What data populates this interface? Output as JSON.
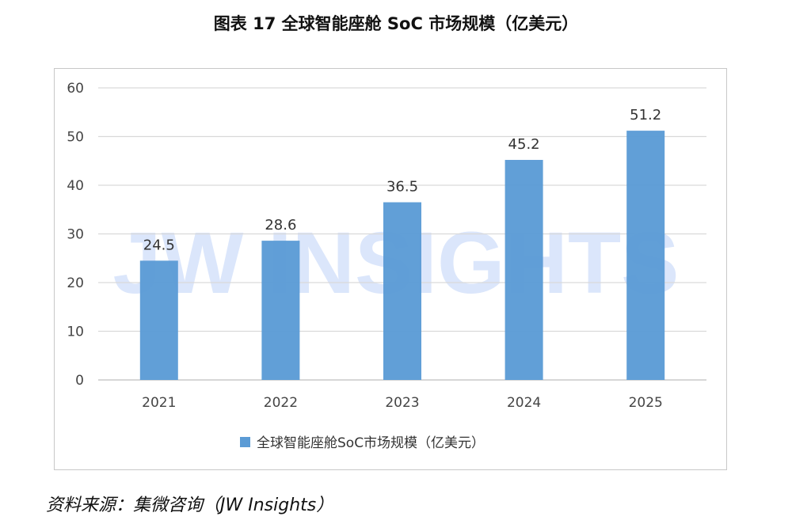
{
  "title": "图表 17 全球智能座舱 SoC 市场规模（亿美元）",
  "source": "资料来源：集微咨询（JW Insights）",
  "watermark": "JW INSIGHTS",
  "colors": {
    "bar": "#5b9bd5",
    "grid": "#d9d9d9",
    "watermark": "#dbe6fb"
  },
  "chart_data": {
    "type": "bar",
    "categories": [
      "2021",
      "2022",
      "2023",
      "2024",
      "2025"
    ],
    "series": [
      {
        "name": "全球智能座舱SoC市场规模（亿美元）",
        "values": [
          24.5,
          28.6,
          36.5,
          45.2,
          51.2
        ]
      }
    ],
    "value_labels": [
      "24.5",
      "28.6",
      "36.5",
      "45.2",
      "51.2"
    ],
    "ylim": [
      0,
      60
    ],
    "yticks": [
      0,
      10,
      20,
      30,
      40,
      50,
      60
    ],
    "grid": true,
    "legend": "bottom"
  }
}
